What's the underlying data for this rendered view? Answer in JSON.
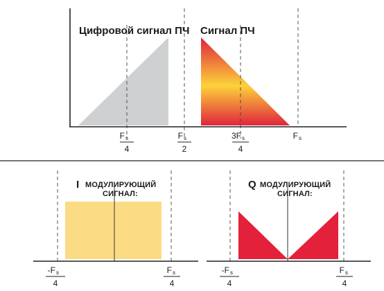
{
  "top": {
    "left_label": "Цифровой сигнал ПЧ",
    "right_label": "Сигнал ПЧ",
    "ticks": [
      {
        "num": "F",
        "sub": "s",
        "den": "4"
      },
      {
        "num": "F",
        "sub": "s",
        "den": "2"
      },
      {
        "num": "3F",
        "sub": "s",
        "den": "4"
      },
      {
        "num": "F",
        "sub": "s",
        "den": ""
      }
    ]
  },
  "bottom_left": {
    "label_letter": "I",
    "label_line1": "МОДУЛИРУЮЩИЙ",
    "label_line2": "СИГНАЛ:",
    "ticks": [
      {
        "num": "-F",
        "sub": "s",
        "den": "4"
      },
      {
        "num": "F",
        "sub": "s",
        "den": "4"
      }
    ]
  },
  "bottom_right": {
    "label_letter": "Q",
    "label_line1": "МОДУЛИРУЮЩИЙ",
    "label_line2": "СИГНАЛ:",
    "ticks": [
      {
        "num": "-F",
        "sub": "s",
        "den": "4"
      },
      {
        "num": "F",
        "sub": "s",
        "den": "4"
      }
    ]
  },
  "colors": {
    "gray_triangle": "#cfd0d2",
    "red": "#e0243c",
    "yellow": "#fcd23a",
    "pale_yellow": "#fbdc84",
    "q_red": "#e3213a"
  }
}
